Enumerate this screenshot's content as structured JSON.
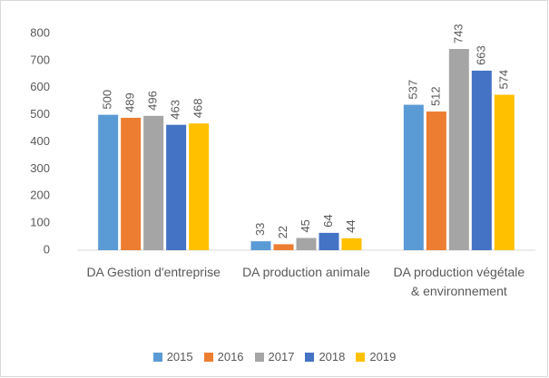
{
  "chart_data": {
    "type": "bar",
    "categories": [
      "DA Gestion d'entreprise",
      "DA production animale",
      "DA production végétale & environnement"
    ],
    "series": [
      {
        "name": "2015",
        "color": "#5b9bd5",
        "values": [
          500,
          33,
          537
        ]
      },
      {
        "name": "2016",
        "color": "#ed7d31",
        "values": [
          489,
          22,
          512
        ]
      },
      {
        "name": "2017",
        "color": "#a5a5a5",
        "values": [
          496,
          45,
          743
        ]
      },
      {
        "name": "2018",
        "color": "#4472c4",
        "values": [
          463,
          64,
          663
        ]
      },
      {
        "name": "2019",
        "color": "#ffc000",
        "values": [
          468,
          44,
          574
        ]
      }
    ],
    "ylim": [
      0,
      800
    ],
    "yticks": [
      0,
      100,
      200,
      300,
      400,
      500,
      600,
      700,
      800
    ],
    "grid": false,
    "legend": "bottom"
  }
}
